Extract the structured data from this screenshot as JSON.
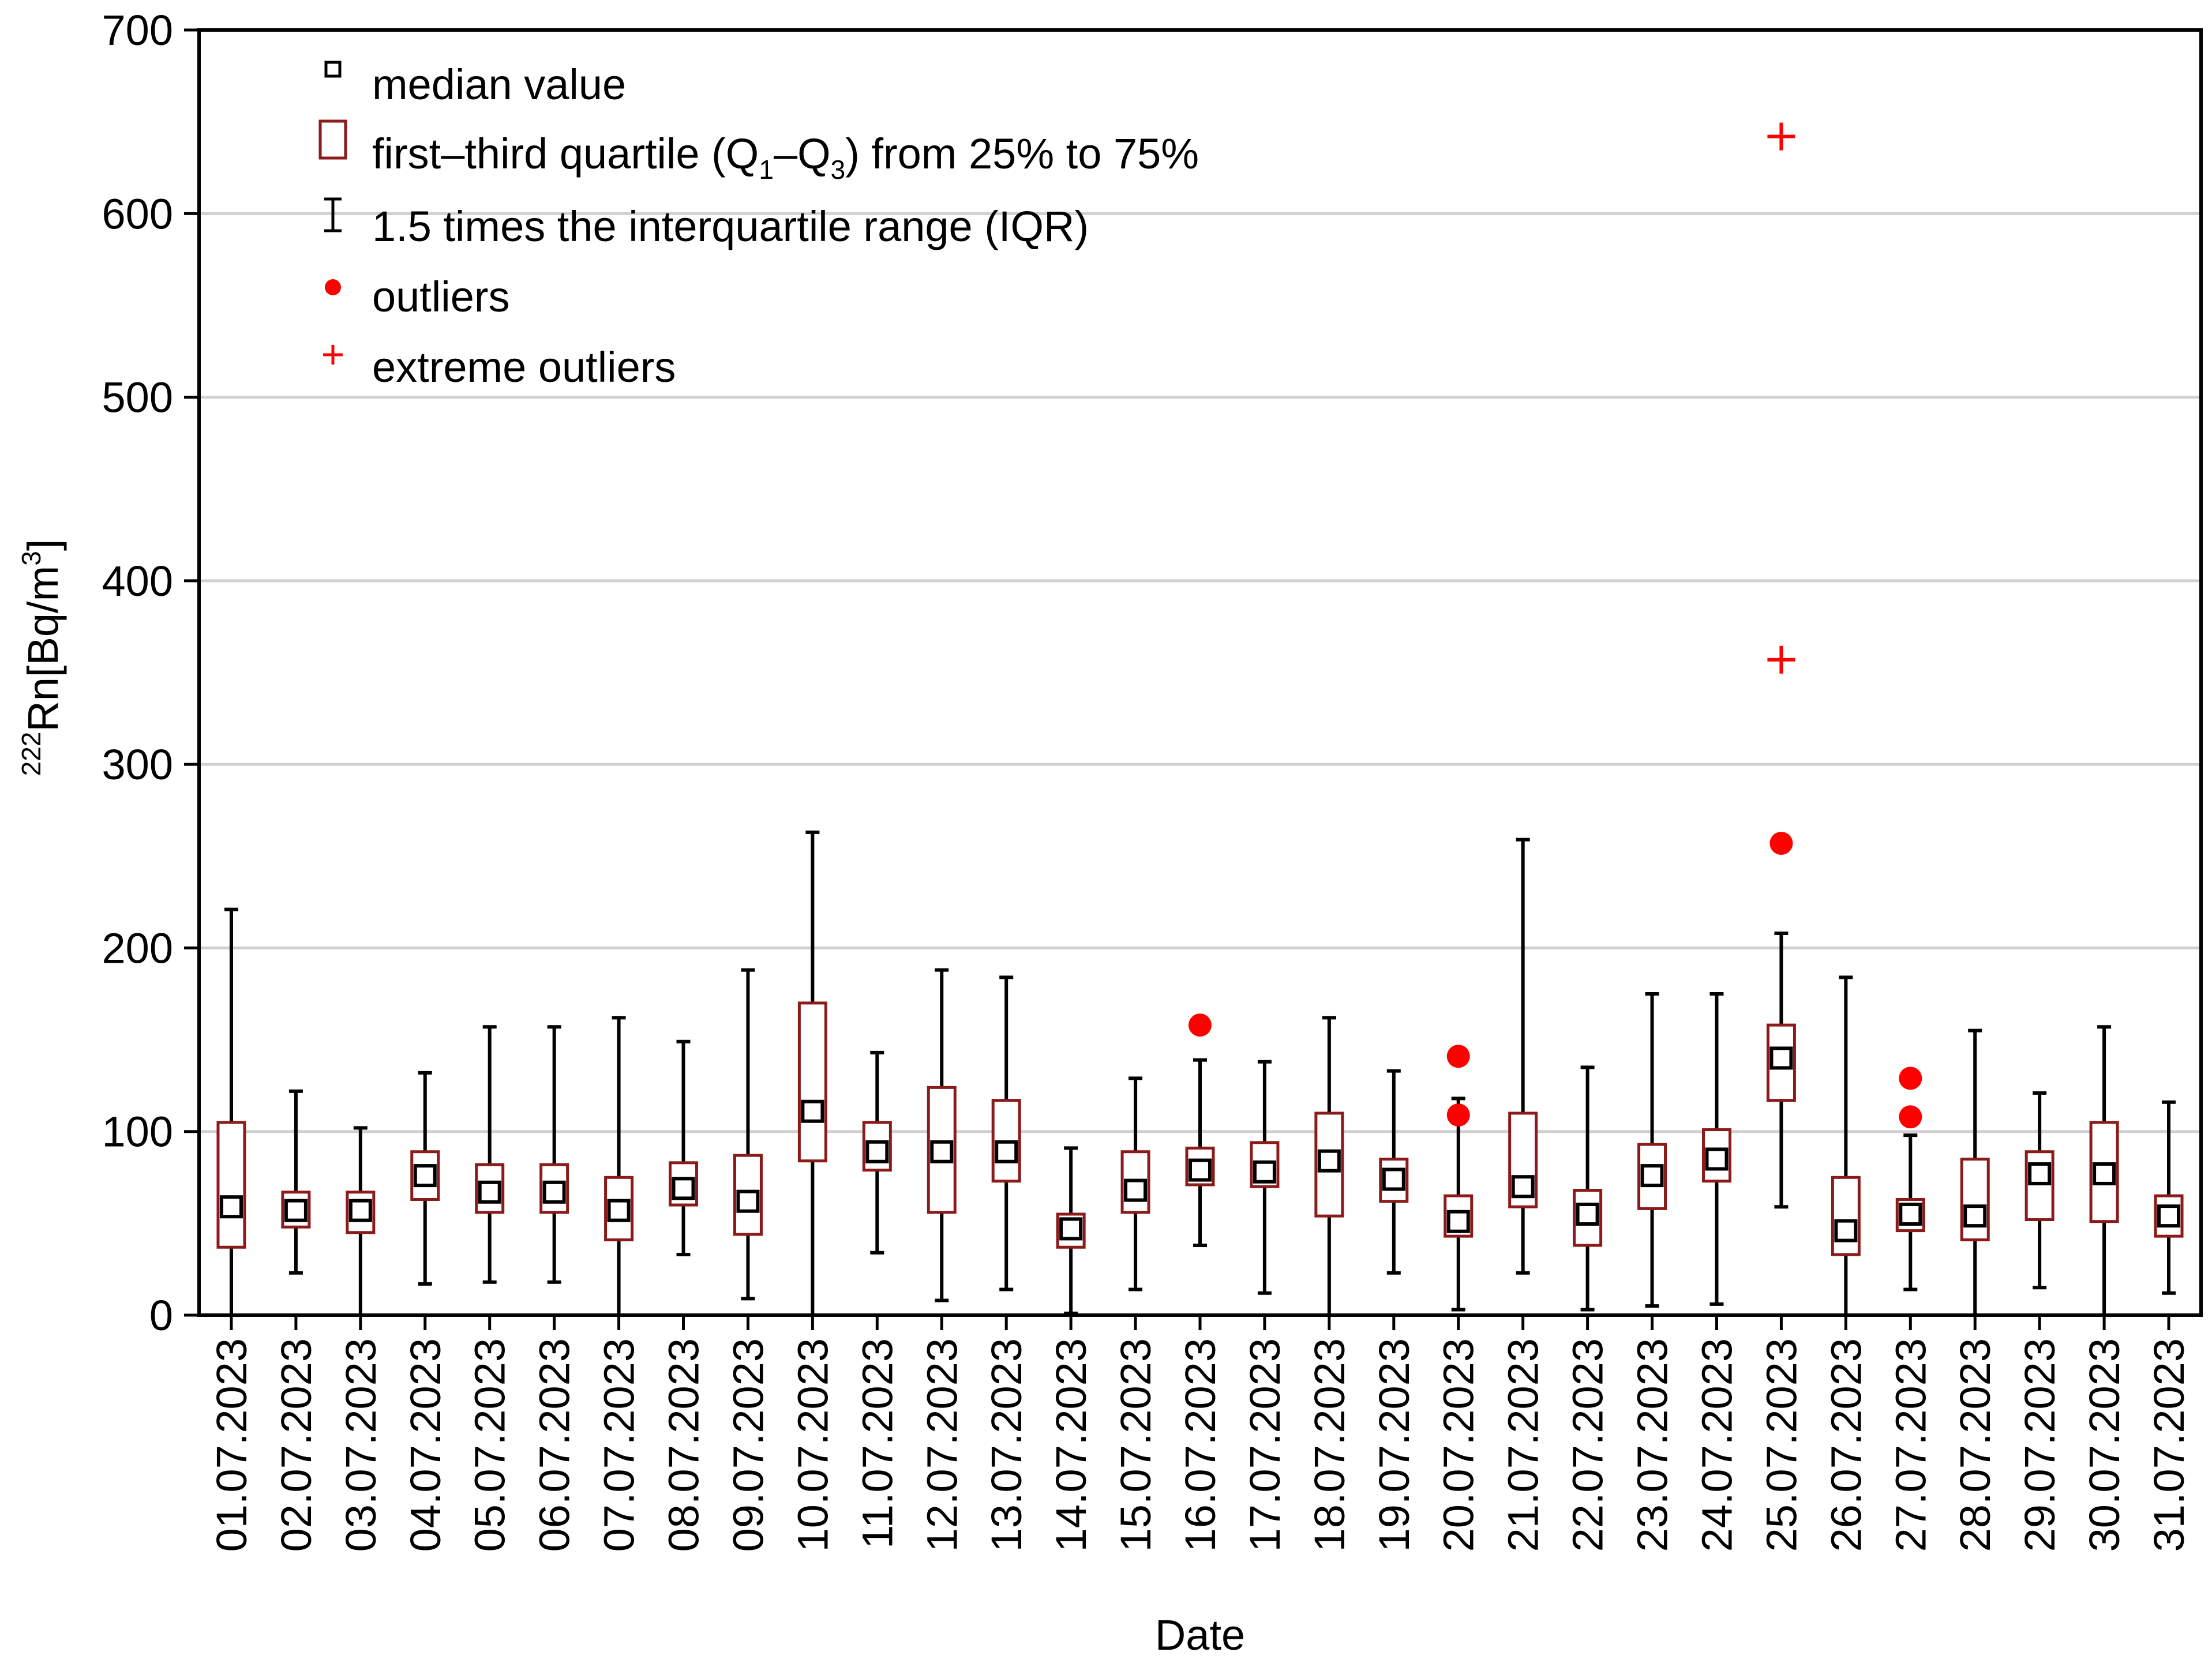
{
  "chart_data": {
    "type": "box",
    "title": "",
    "xlabel": "Date",
    "ylabel": {
      "isotope": "222",
      "element": "Rn",
      "unit_prefix": "[Bq/m",
      "unit_exp": "3",
      "unit_suffix": "]"
    },
    "ylim": [
      0,
      700
    ],
    "yticks": [
      0,
      100,
      200,
      300,
      400,
      500,
      600,
      700
    ],
    "grid": true,
    "legend_position": "top-left",
    "categories": [
      "01.07.2023",
      "02.07.2023",
      "03.07.2023",
      "04.07.2023",
      "05.07.2023",
      "06.07.2023",
      "07.07.2023",
      "08.07.2023",
      "09.07.2023",
      "10.07.2023",
      "11.07.2023",
      "12.07.2023",
      "13.07.2023",
      "14.07.2023",
      "15.07.2023",
      "16.07.2023",
      "17.07.2023",
      "18.07.2023",
      "19.07.2023",
      "20.07.2023",
      "21.07.2023",
      "22.07.2023",
      "23.07.2023",
      "24.07.2023",
      "25.07.2023",
      "26.07.2023",
      "27.07.2023",
      "28.07.2023",
      "29.07.2023",
      "30.07.2023",
      "31.07.2023"
    ],
    "boxes": [
      {
        "whisker_low": 0,
        "q1": 37,
        "median": 59,
        "q3": 105,
        "whisker_high": 221
      },
      {
        "whisker_low": 23,
        "q1": 48,
        "median": 57,
        "q3": 67,
        "whisker_high": 122
      },
      {
        "whisker_low": 0,
        "q1": 45,
        "median": 57,
        "q3": 67,
        "whisker_high": 102
      },
      {
        "whisker_low": 17,
        "q1": 63,
        "median": 76,
        "q3": 89,
        "whisker_high": 132
      },
      {
        "whisker_low": 18,
        "q1": 56,
        "median": 67,
        "q3": 82,
        "whisker_high": 157
      },
      {
        "whisker_low": 18,
        "q1": 56,
        "median": 67,
        "q3": 82,
        "whisker_high": 157
      },
      {
        "whisker_low": 0,
        "q1": 41,
        "median": 57,
        "q3": 75,
        "whisker_high": 162
      },
      {
        "whisker_low": 33,
        "q1": 60,
        "median": 69,
        "q3": 83,
        "whisker_high": 149
      },
      {
        "whisker_low": 9,
        "q1": 44,
        "median": 62,
        "q3": 87,
        "whisker_high": 188
      },
      {
        "whisker_low": 0,
        "q1": 84,
        "median": 111,
        "q3": 170,
        "whisker_high": 263
      },
      {
        "whisker_low": 34,
        "q1": 79,
        "median": 89,
        "q3": 105,
        "whisker_high": 143
      },
      {
        "whisker_low": 8,
        "q1": 56,
        "median": 89,
        "q3": 124,
        "whisker_high": 188
      },
      {
        "whisker_low": 14,
        "q1": 73,
        "median": 89,
        "q3": 117,
        "whisker_high": 184
      },
      {
        "whisker_low": 1,
        "q1": 37,
        "median": 47,
        "q3": 55,
        "whisker_high": 91
      },
      {
        "whisker_low": 14,
        "q1": 56,
        "median": 68,
        "q3": 89,
        "whisker_high": 129
      },
      {
        "whisker_low": 38,
        "q1": 71,
        "median": 79,
        "q3": 91,
        "whisker_high": 139
      },
      {
        "whisker_low": 12,
        "q1": 70,
        "median": 78,
        "q3": 94,
        "whisker_high": 138
      },
      {
        "whisker_low": 0,
        "q1": 54,
        "median": 84,
        "q3": 110,
        "whisker_high": 162
      },
      {
        "whisker_low": 23,
        "q1": 62,
        "median": 74,
        "q3": 85,
        "whisker_high": 133
      },
      {
        "whisker_low": 3,
        "q1": 43,
        "median": 51,
        "q3": 65,
        "whisker_high": 118
      },
      {
        "whisker_low": 23,
        "q1": 59,
        "median": 70,
        "q3": 110,
        "whisker_high": 259
      },
      {
        "whisker_low": 3,
        "q1": 38,
        "median": 55,
        "q3": 68,
        "whisker_high": 135
      },
      {
        "whisker_low": 5,
        "q1": 58,
        "median": 76,
        "q3": 93,
        "whisker_high": 175
      },
      {
        "whisker_low": 6,
        "q1": 73,
        "median": 85,
        "q3": 101,
        "whisker_high": 175
      },
      {
        "whisker_low": 59,
        "q1": 117,
        "median": 140,
        "q3": 158,
        "whisker_high": 208
      },
      {
        "whisker_low": 0,
        "q1": 33,
        "median": 46,
        "q3": 75,
        "whisker_high": 184
      },
      {
        "whisker_low": 14,
        "q1": 46,
        "median": 55,
        "q3": 63,
        "whisker_high": 98
      },
      {
        "whisker_low": 0,
        "q1": 41,
        "median": 54,
        "q3": 85,
        "whisker_high": 155
      },
      {
        "whisker_low": 15,
        "q1": 52,
        "median": 77,
        "q3": 89,
        "whisker_high": 121
      },
      {
        "whisker_low": 0,
        "q1": 51,
        "median": 77,
        "q3": 105,
        "whisker_high": 157
      },
      {
        "whisker_low": 12,
        "q1": 43,
        "median": 54,
        "q3": 65,
        "whisker_high": 116
      }
    ],
    "outliers": [
      {
        "category": "16.07.2023",
        "value": 158
      },
      {
        "category": "20.07.2023",
        "value": 141
      },
      {
        "category": "20.07.2023",
        "value": 109
      },
      {
        "category": "25.07.2023",
        "value": 257
      },
      {
        "category": "27.07.2023",
        "value": 129
      },
      {
        "category": "27.07.2023",
        "value": 108
      }
    ],
    "extreme_outliers": [
      {
        "category": "25.07.2023",
        "value": 642
      },
      {
        "category": "25.07.2023",
        "value": 357
      }
    ],
    "legend": {
      "median": "median value",
      "quartile_prefix": "first–third quartile (Q",
      "quartile_sub1": "1",
      "quartile_mid": "–Q",
      "quartile_sub3": "3",
      "quartile_suffix": ") from 25% to 75%",
      "whisker": "1.5 times the interquartile range (IQR)",
      "outliers": "outliers",
      "extreme": "extreme outliers"
    },
    "colors": {
      "box": "#8B1A1A",
      "whisker": "#000000",
      "median": "#000000",
      "outlier": "#FF0000",
      "grid": "#D0D0D0",
      "frame": "#000000"
    }
  }
}
